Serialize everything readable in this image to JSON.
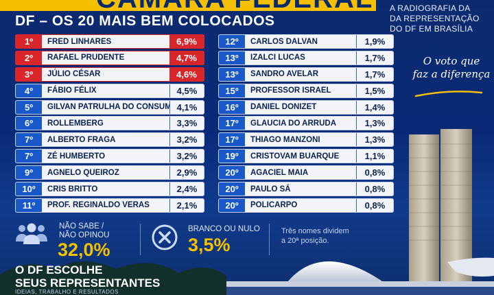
{
  "header": {
    "banner_title": "CÂMARA FEDERAL",
    "subtitle": "DF – OS 20 MAIS BEM COLOCADOS",
    "right_text_lines": [
      "A RADIOGRAFIA DA",
      "DA REPRESENTAÇÃO",
      "DO DF EM BRASÍLIA"
    ]
  },
  "ranking_left": [
    {
      "pos": "1º",
      "name": "FRED LINHARES",
      "pct": "6,9%",
      "highlight": true
    },
    {
      "pos": "2º",
      "name": "RAFAEL PRUDENTE",
      "pct": "4,7%",
      "highlight": true
    },
    {
      "pos": "3º",
      "name": "JÚLIO CÉSAR",
      "pct": "4,6%",
      "highlight": true
    },
    {
      "pos": "4º",
      "name": "FÁBIO FÉLIX",
      "pct": "4,5%",
      "highlight": false
    },
    {
      "pos": "5º",
      "name": "GILVAN PATRULHA DO CONSUMIDOR",
      "pct": "4,1%",
      "highlight": false
    },
    {
      "pos": "6º",
      "name": "ROLLEMBERG",
      "pct": "3,3%",
      "highlight": false
    },
    {
      "pos": "7º",
      "name": "ALBERTO FRAGA",
      "pct": "3,2%",
      "highlight": false
    },
    {
      "pos": "7º",
      "name": "ZÉ HUMBERTO",
      "pct": "3,2%",
      "highlight": false
    },
    {
      "pos": "9º",
      "name": "AGNELO QUEIROZ",
      "pct": "2,9%",
      "highlight": false
    },
    {
      "pos": "10º",
      "name": "CRIS BRITTO",
      "pct": "2,4%",
      "highlight": false
    },
    {
      "pos": "11º",
      "name": "PROF. REGINALDO VERAS",
      "pct": "2,1%",
      "highlight": false
    }
  ],
  "ranking_right": [
    {
      "pos": "12º",
      "name": "CARLOS DALVAN",
      "pct": "1,9%"
    },
    {
      "pos": "13º",
      "name": "IZALCI LUCAS",
      "pct": "1,7%"
    },
    {
      "pos": "13º",
      "name": "SANDRO AVELAR",
      "pct": "1,7%"
    },
    {
      "pos": "15º",
      "name": "PROFESSOR ISRAEL",
      "pct": "1,5%"
    },
    {
      "pos": "16º",
      "name": "DANIEL DONIZET",
      "pct": "1,4%"
    },
    {
      "pos": "17º",
      "name": "GLAUCIA DO ARRUDA",
      "pct": "1,3%"
    },
    {
      "pos": "17º",
      "name": "THIAGO MANZONI",
      "pct": "1,3%"
    },
    {
      "pos": "19º",
      "name": "CRISTOVAM BUARQUE",
      "pct": "1,1%"
    },
    {
      "pos": "20º",
      "name": "AGACIEL MAIA",
      "pct": "0,8%"
    },
    {
      "pos": "20º",
      "name": "PAULO SÁ",
      "pct": "0,8%"
    },
    {
      "pos": "20º",
      "name": "POLICARPO",
      "pct": "0,8%"
    }
  ],
  "stats": {
    "dont_know": {
      "label_line1": "NÃO SABE /",
      "label_line2": "NÃO OPINOU",
      "value": "32,0%",
      "icon": "people-icon"
    },
    "blank_null": {
      "label": "BRANCO OU NULO",
      "value": "3,5%",
      "icon": "x-circle-icon"
    },
    "note_line1": "Três nomes dividem",
    "note_line2": "a 20ª posição."
  },
  "slogan": {
    "line1": "O voto que",
    "line2": "faz a diferença"
  },
  "footer": {
    "title_line1": "O DF ESCOLHE",
    "title_line2": "SEUS REPRESENTANTES",
    "subtitle": "IDEIAS, TRABALHO E RESULTADOS"
  },
  "colors": {
    "accent_yellow": "#f5c000",
    "highlight_red": "#d9262b",
    "position_blue": "#1858c9",
    "background_navy": "#0b2a6e"
  }
}
